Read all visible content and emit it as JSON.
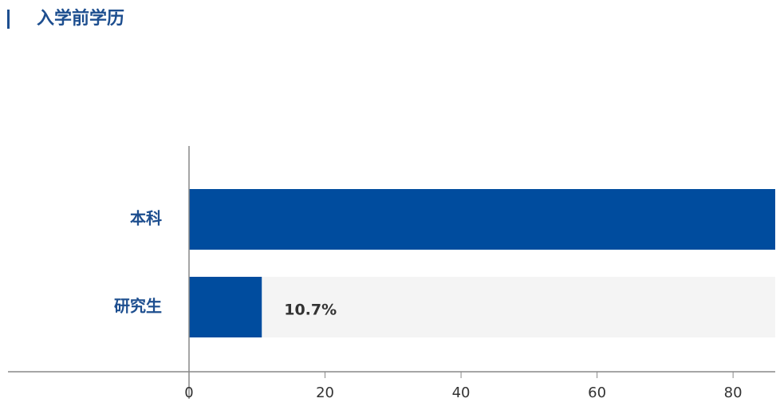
{
  "chart_data": {
    "type": "barh",
    "title": "入学前学历",
    "categories": [
      "本科",
      "研究生"
    ],
    "values": [
      89.3,
      10.7
    ],
    "value_labels": [
      null,
      "10.7%"
    ],
    "color": "#004c9e",
    "xlim": [
      0,
      86.2
    ],
    "xticks": [
      0,
      20,
      40,
      60,
      80
    ]
  }
}
